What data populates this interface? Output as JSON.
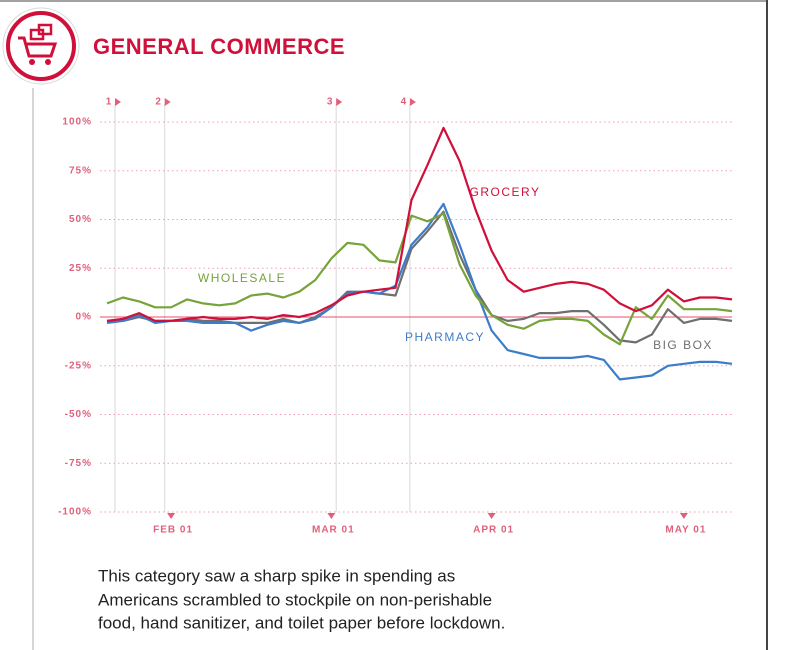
{
  "header": {
    "title": "GENERAL COMMERCE"
  },
  "chart_data": {
    "type": "line",
    "categories": [
      null,
      null,
      null,
      null,
      "FEB 01",
      null,
      null,
      null,
      null,
      null,
      null,
      null,
      null,
      null,
      "MAR 01",
      null,
      null,
      null,
      null,
      null,
      null,
      null,
      null,
      null,
      "APR 01",
      null,
      null,
      null,
      null,
      null,
      null,
      null,
      null,
      null,
      null,
      null,
      "MAY 01",
      null,
      null,
      null
    ],
    "events": [
      "1",
      "2",
      "3",
      "4"
    ],
    "series": [
      {
        "name": "GROCERY",
        "color": "#d0103a",
        "values": [
          -2,
          -1,
          2,
          -2,
          -2,
          -1,
          0,
          -1,
          -1,
          0,
          -1,
          1,
          0,
          2,
          6,
          11,
          13,
          14,
          15,
          60,
          78,
          97,
          80,
          55,
          34,
          19,
          13,
          15,
          17,
          18,
          17,
          14,
          7,
          3,
          6,
          14,
          8,
          10,
          10,
          9
        ]
      },
      {
        "name": "WHOLESALE",
        "color": "#76a33a",
        "values": [
          7,
          10,
          8,
          5,
          5,
          9,
          7,
          6,
          7,
          11,
          12,
          10,
          13,
          19,
          30,
          38,
          37,
          29,
          28,
          52,
          49,
          53,
          27,
          11,
          1,
          -4,
          -6,
          -2,
          -1,
          -1,
          -2,
          -9,
          -14,
          5,
          -1,
          11,
          4,
          4,
          4,
          3
        ]
      },
      {
        "name": "PHARMACY",
        "color": "#3d7cc9",
        "values": [
          -3,
          -2,
          1,
          -3,
          -2,
          -2,
          -3,
          -3,
          -3,
          -7,
          -4,
          -2,
          -3,
          -1,
          5,
          12,
          13,
          12,
          16,
          37,
          46,
          58,
          37,
          14,
          -7,
          -17,
          -19,
          -21,
          -21,
          -21,
          -20,
          -22,
          -32,
          -31,
          -30,
          -25,
          -24,
          -23,
          -23,
          -24
        ]
      },
      {
        "name": "BIG BOX",
        "color": "#6f6f70",
        "values": [
          -2,
          -2,
          0,
          -2,
          -2,
          -1,
          -2,
          -2,
          -3,
          -3,
          -3,
          -1,
          -3,
          0,
          5,
          13,
          13,
          12,
          11,
          35,
          44,
          54,
          32,
          14,
          1,
          -2,
          -1,
          2,
          2,
          3,
          3,
          -4,
          -12,
          -13,
          -9,
          4,
          -3,
          -1,
          -1,
          -2
        ]
      }
    ],
    "ylim": [
      -100,
      100
    ],
    "yticks": [
      {
        "value": -100,
        "label": "-100%"
      },
      {
        "value": -75,
        "label": "-75%"
      },
      {
        "value": -50,
        "label": "-50%"
      },
      {
        "value": -25,
        "label": "-25%"
      },
      {
        "value": 0,
        "label": "0%"
      },
      {
        "value": 25,
        "label": "25%"
      },
      {
        "value": 50,
        "label": "50%"
      },
      {
        "value": 75,
        "label": "75%"
      },
      {
        "value": 100,
        "label": "100%"
      }
    ],
    "grid": true
  },
  "caption": [
    "This category saw a sharp spike in spending as",
    "Americans scrambled to stockpile on non-perishable",
    "food, hand sanitizer, and toilet paper before lockdown."
  ]
}
